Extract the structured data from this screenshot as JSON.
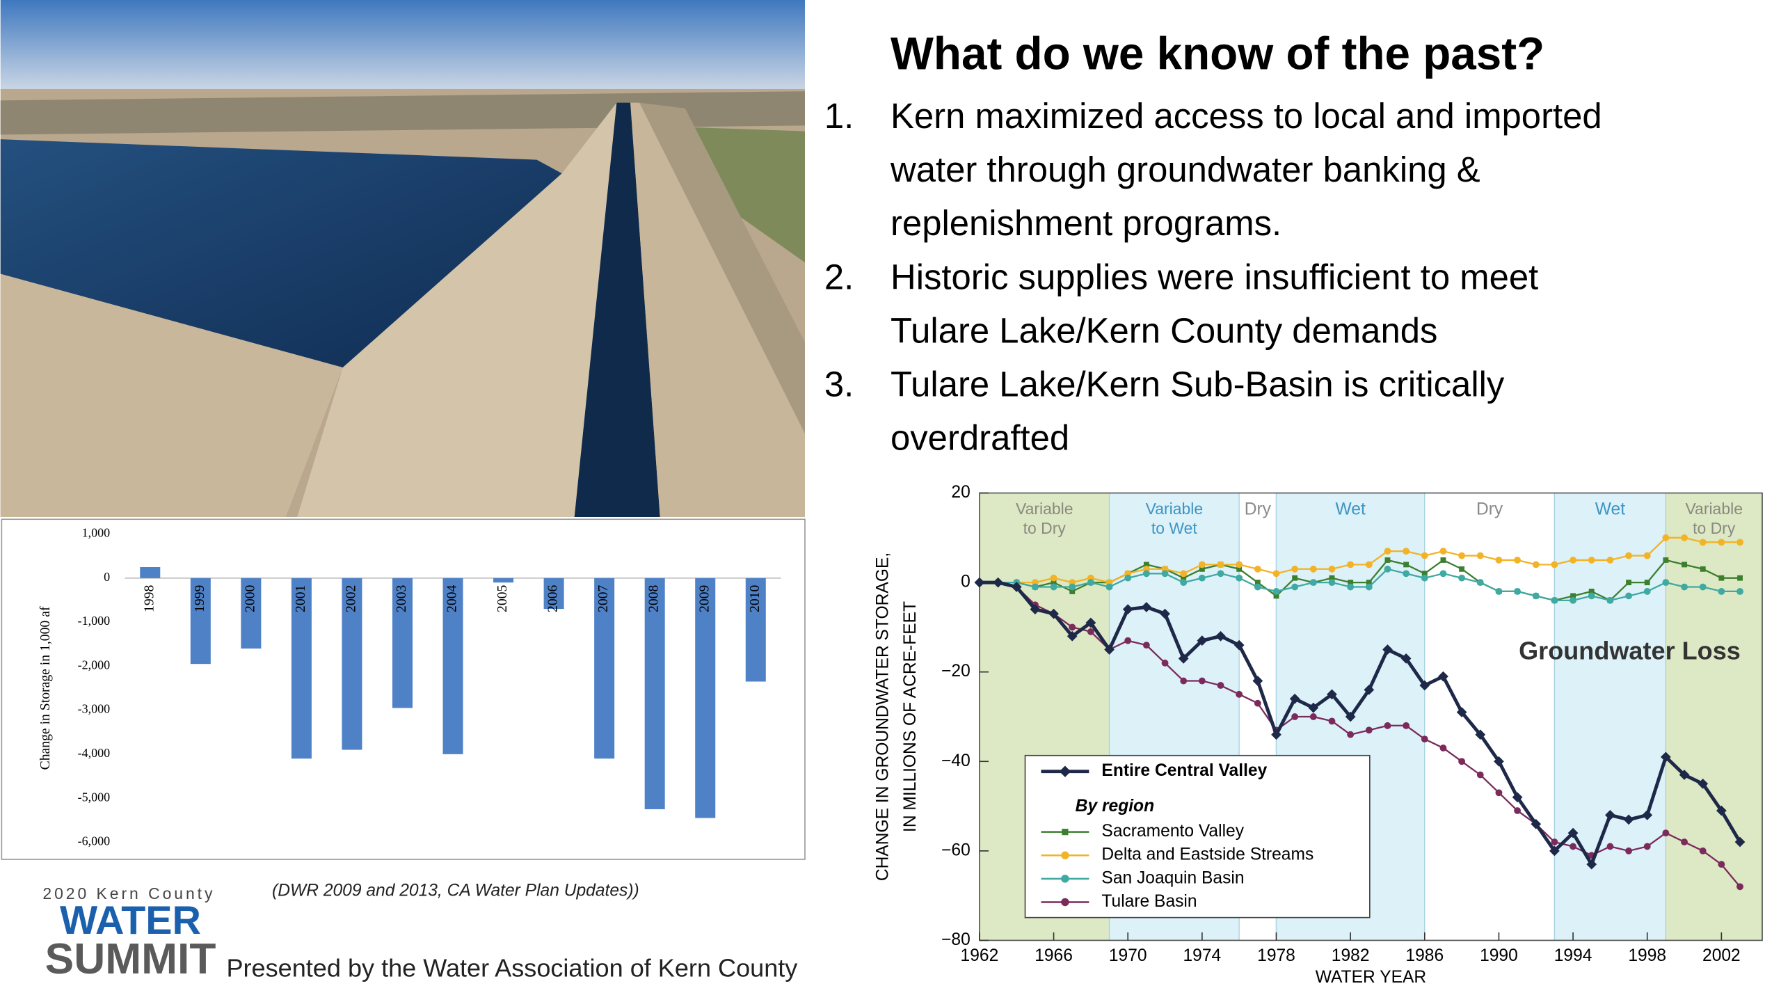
{
  "slide": {
    "title": "What do we know of the past?",
    "points": [
      {
        "number": "1.",
        "lines": [
          "Kern maximized access to local and imported",
          "water through groundwater banking &",
          "replenishment programs."
        ]
      },
      {
        "number": "2.",
        "lines": [
          "Historic supplies were insufficient to meet",
          "Tulare Lake/Kern County demands"
        ]
      },
      {
        "number": "3.",
        "lines": [
          "Tulare Lake/Kern Sub-Basin is critically",
          "overdrafted"
        ]
      }
    ],
    "citation": "(DWR 2009 and 2013, CA Water Plan Updates))",
    "logo": {
      "year_line": "2020 Kern County",
      "word1": "WATER",
      "word2": "SUMMIT"
    },
    "presenter": "Presented by the Water Association of Kern County"
  },
  "chart_data": [
    {
      "type": "bar",
      "ylabel": "Change in Storage in 1,000 af",
      "categories": [
        "1998",
        "1999",
        "2000",
        "2001",
        "2002",
        "2003",
        "2004",
        "2005",
        "2006",
        "2007",
        "2008",
        "2009",
        "2010"
      ],
      "values": [
        250,
        -1950,
        -1600,
        -4100,
        -3900,
        -2950,
        -4000,
        -100,
        -700,
        -4100,
        -5250,
        -5450,
        -2350
      ],
      "color": "#4f81c7",
      "ylim": [
        -6000,
        1000
      ],
      "yticks": [
        {
          "value": 1000,
          "label": "1,000"
        },
        0,
        {
          "value": -1000,
          "label": "-1,000"
        },
        {
          "value": -2000,
          "label": "-2,000"
        },
        {
          "value": -3000,
          "label": "-3,000"
        },
        {
          "value": -4000,
          "label": "-4,000"
        },
        {
          "value": -5000,
          "label": "-5,000"
        },
        {
          "value": -6000,
          "label": "-6,000"
        }
      ],
      "grid": false
    },
    {
      "type": "line",
      "ylabel": [
        "CHANGE IN GROUNDWATER STORAGE,",
        "IN MILLIONS OF ACRE-FEET"
      ],
      "xlabel": "WATER YEAR",
      "annotation": "Groundwater Loss",
      "legend_heading": "By region",
      "x": [
        1962,
        1963,
        1964,
        1965,
        1966,
        1967,
        1968,
        1969,
        1970,
        1971,
        1972,
        1973,
        1974,
        1975,
        1976,
        1977,
        1978,
        1979,
        1980,
        1981,
        1982,
        1983,
        1984,
        1985,
        1986,
        1987,
        1988,
        1989,
        1990,
        1991,
        1992,
        1993,
        1994,
        1995,
        1996,
        1997,
        1998,
        1999,
        2000,
        2001,
        2002,
        2003
      ],
      "xlim": [
        1962,
        2004.2
      ],
      "xticks": [
        1962,
        1966,
        1970,
        1974,
        1978,
        1982,
        1986,
        1990,
        1994,
        1998,
        2002
      ],
      "ylim": [
        -80,
        20
      ],
      "yticks": [
        {
          "value": -80,
          "label": "−80"
        },
        {
          "value": -60,
          "label": "−60"
        },
        {
          "value": -40,
          "label": "−40"
        },
        {
          "value": -20,
          "label": "−20"
        },
        0,
        20
      ],
      "periods": [
        {
          "label": [
            "Variable",
            "to Dry"
          ],
          "start": 1962,
          "end": 1969,
          "color": "#dde8c4",
          "label_color": "#8a8a80"
        },
        {
          "label": [
            "Variable",
            "to Wet"
          ],
          "start": 1969,
          "end": 1976,
          "color": "#dcf1f8",
          "label_color": "#3d95c4"
        },
        {
          "label": [
            "Dry"
          ],
          "start": 1976,
          "end": 1978,
          "color": "#ffffff",
          "label_color": "#8a8a8a"
        },
        {
          "label": [
            "Wet"
          ],
          "start": 1978,
          "end": 1986,
          "color": "#dcf1f8",
          "label_color": "#3d95c4"
        },
        {
          "label": [
            "Dry"
          ],
          "start": 1986,
          "end": 1993,
          "color": "#ffffff",
          "label_color": "#8a8a8a"
        },
        {
          "label": [
            "Wet"
          ],
          "start": 1993,
          "end": 1999,
          "color": "#dcf1f8",
          "label_color": "#3d95c4"
        },
        {
          "label": [
            "Variable",
            "to Dry"
          ],
          "start": 1999,
          "end": 2004.2,
          "color": "#dde8c4",
          "label_color": "#8a8a80"
        }
      ],
      "series": [
        {
          "name": "Entire Central Valley",
          "color": "#1e2848",
          "marker": "diamond",
          "values": [
            0,
            0,
            -1,
            -6,
            -7,
            -12,
            -9,
            -15,
            -6,
            -5.5,
            -7,
            -17,
            -13,
            -12,
            -14,
            -22,
            -34,
            -26,
            -28,
            -25,
            -30,
            -24,
            -15,
            -17,
            -23,
            -21,
            -29,
            -34,
            -40,
            -48,
            -54,
            -60,
            -56,
            -63,
            -52,
            -53,
            -52,
            -39,
            -43,
            -45,
            -51,
            -58
          ]
        },
        {
          "name": "Sacramento Valley",
          "color": "#3c7f2e",
          "marker": "square",
          "values": [
            0,
            0,
            0,
            -1,
            0,
            -2,
            0,
            0,
            2,
            4,
            3,
            1,
            3,
            4,
            3,
            0,
            -3,
            1,
            0,
            1,
            0,
            0,
            5,
            4,
            2,
            5,
            3,
            0,
            -2,
            -2,
            -3,
            -4,
            -3,
            -2,
            -4,
            0,
            0,
            5,
            4,
            3,
            1,
            1
          ]
        },
        {
          "name": "Delta and Eastside Streams",
          "color": "#f2b327",
          "marker": "circle",
          "values": [
            0,
            0,
            0,
            0,
            1,
            0,
            1,
            0,
            2,
            3,
            3,
            2,
            4,
            4,
            4,
            3,
            2,
            3,
            3,
            3,
            4,
            4,
            7,
            7,
            6,
            7,
            6,
            6,
            5,
            5,
            4,
            4,
            5,
            5,
            5,
            6,
            6,
            10,
            10,
            9,
            9,
            9
          ]
        },
        {
          "name": "San Joaquin Basin",
          "color": "#3fa9a2",
          "marker": "circle",
          "values": [
            0,
            0,
            0,
            -1,
            -1,
            -1,
            0,
            -1,
            1,
            2,
            2,
            0,
            1,
            2,
            1,
            -1,
            -2,
            -1,
            0,
            0,
            -1,
            -1,
            3,
            2,
            1,
            2,
            1,
            0,
            -2,
            -2,
            -3,
            -4,
            -4,
            -3,
            -4,
            -3,
            -2,
            0,
            -1,
            -1,
            -2,
            -2
          ]
        },
        {
          "name": "Tulare Basin",
          "color": "#7b2a5c",
          "marker": "circle",
          "values": [
            0,
            0,
            -1,
            -5,
            -7,
            -10,
            -11,
            -15,
            -13,
            -14,
            -18,
            -22,
            -22,
            -23,
            -25,
            -27,
            -33,
            -30,
            -30,
            -31,
            -34,
            -33,
            -32,
            -32,
            -35,
            -37,
            -40,
            -43,
            -47,
            -51,
            -54,
            -58,
            -59,
            -61,
            -59,
            -60,
            -59,
            -56,
            -58,
            -60,
            -63,
            -68
          ]
        }
      ]
    }
  ]
}
